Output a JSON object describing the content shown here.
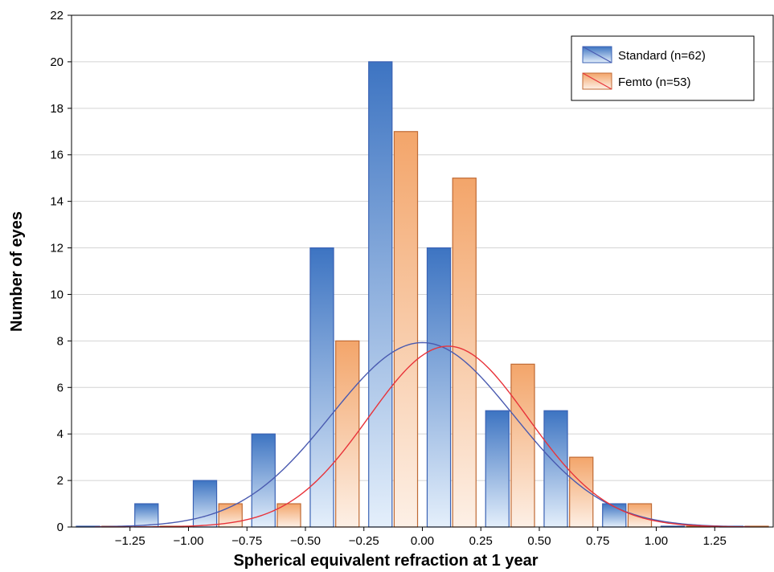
{
  "chart_data": {
    "type": "bar",
    "title": "",
    "xlabel": "Spherical equivalent refraction at 1 year",
    "ylabel": "Number of eyes",
    "xlim": [
      -1.5,
      1.5
    ],
    "ylim": [
      0,
      22
    ],
    "x_ticks": [
      -1.25,
      -1.0,
      -0.75,
      -0.5,
      -0.25,
      0.0,
      0.25,
      0.5,
      0.75,
      1.0,
      1.25
    ],
    "x_tick_labels": [
      "−1.25",
      "−1.00",
      "−0.75",
      "−0.50",
      "−0.25",
      "0.00",
      "0.25",
      "0.50",
      "0.75",
      "1.00",
      "1.25"
    ],
    "y_ticks": [
      0,
      2,
      4,
      6,
      8,
      10,
      12,
      14,
      16,
      18,
      20,
      22
    ],
    "grid": "horizontal",
    "legend_position": "top-right",
    "bin_centers": [
      -1.375,
      -1.125,
      -0.875,
      -0.625,
      -0.375,
      -0.125,
      0.125,
      0.375,
      0.625,
      0.875,
      1.125,
      1.375
    ],
    "series": [
      {
        "name": "Standard (n=62)",
        "color": "#3a62b4",
        "fill_top": "#3d74c2",
        "fill_bottom": "#e4effb",
        "curve_color": "#4a5ab0",
        "values": [
          0,
          1,
          2,
          4,
          12,
          20,
          12,
          5,
          5,
          1,
          0,
          0
        ],
        "fit": {
          "mean": 0.0,
          "sd": 0.39,
          "n": 62
        }
      },
      {
        "name": "Femto (n=53)",
        "color": "#c06a34",
        "fill_top": "#f3a56a",
        "fill_bottom": "#fdf0e6",
        "curve_color": "#e8333a",
        "values": [
          0,
          0,
          1,
          1,
          8,
          17,
          15,
          7,
          3,
          1,
          0,
          0
        ],
        "fit": {
          "mean": 0.11,
          "sd": 0.34,
          "n": 53
        }
      }
    ]
  }
}
